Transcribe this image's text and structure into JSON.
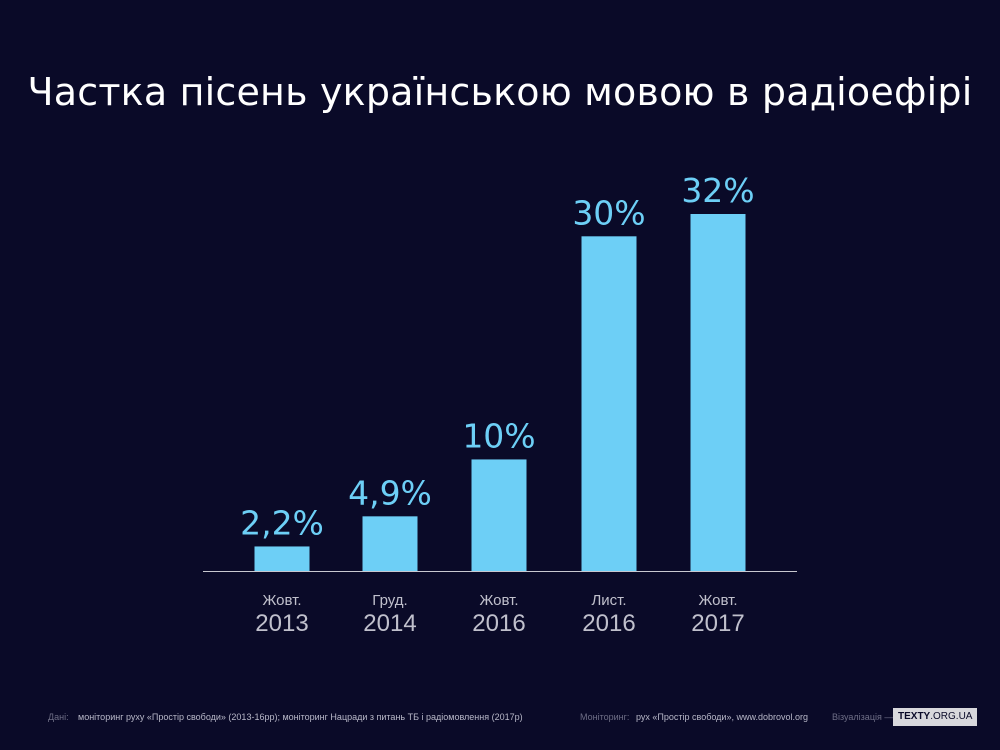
{
  "chart_data": {
    "type": "bar",
    "title": "Частка пісень українською мовою в радіоефірі",
    "categories": [
      {
        "month": "Жовт.",
        "year": "2013"
      },
      {
        "month": "Груд.",
        "year": "2014"
      },
      {
        "month": "Жовт.",
        "year": "2016"
      },
      {
        "month": "Лист.",
        "year": "2016"
      },
      {
        "month": "Жовт.",
        "year": "2017"
      }
    ],
    "values": [
      2.2,
      4.9,
      10,
      30,
      32
    ],
    "value_labels": [
      "2,2%",
      "4,9%",
      "10%",
      "30%",
      "32%"
    ],
    "ylim": [
      0,
      32
    ],
    "grid": false,
    "legend": "none",
    "colors": {
      "bar": "#6dcff6",
      "background": "#0a0a28",
      "value_label": "#6dcff6",
      "axis": "#c8c8d0",
      "tick_label": "#c0c0cc"
    }
  },
  "footer": {
    "data_label": "Дані:",
    "data_text": "моніторинг руху «Простір свободи» (2013-16рр); моніторинг Нацради з питань ТБ і радіомовлення (2017р)",
    "monitoring_label": "Моніторинг:",
    "monitoring_text": "рух «Простір свободи», www.dobrovol.org",
    "visualization_label": "Візуалізація —",
    "brand_bold": "TEXTY",
    "brand_rest": ".ORG.UA"
  }
}
